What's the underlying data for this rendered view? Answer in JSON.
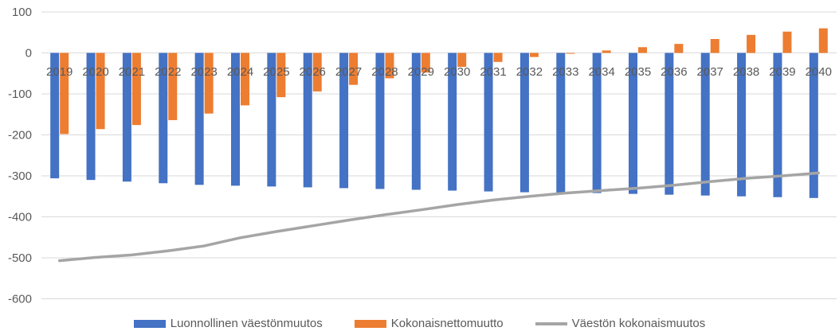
{
  "chart_data": {
    "type": "bar",
    "categories": [
      "2019",
      "2020",
      "2021",
      "2022",
      "2023",
      "2024",
      "2025",
      "2026",
      "2027",
      "2028",
      "2029",
      "2030",
      "2031",
      "2032",
      "2033",
      "2034",
      "2035",
      "2036",
      "2037",
      "2038",
      "2039",
      "2040"
    ],
    "ylim": [
      -600,
      100
    ],
    "yticks": [
      100,
      0,
      -100,
      -200,
      -300,
      -400,
      -500,
      -600
    ],
    "ytick_labels": [
      "100",
      "0",
      "-100",
      "-200",
      "-300",
      "-400",
      "-500",
      "-600"
    ],
    "grid": true,
    "legend_position": "bottom",
    "series": [
      {
        "name": "Luonnollinen väestönmuutos",
        "kind": "bar",
        "color": "#4472c4",
        "values": [
          -306,
          -310,
          -314,
          -318,
          -322,
          -324,
          -326,
          -328,
          -330,
          -332,
          -334,
          -336,
          -338,
          -340,
          -341,
          -342,
          -344,
          -346,
          -348,
          -350,
          -352,
          -354
        ]
      },
      {
        "name": "Kokonaisnettomuutto",
        "kind": "bar",
        "color": "#ed7d31",
        "values": [
          -198,
          -186,
          -176,
          -164,
          -148,
          -128,
          -108,
          -94,
          -78,
          -62,
          -48,
          -34,
          -22,
          -10,
          -2,
          6,
          14,
          22,
          34,
          44,
          52,
          60
        ]
      },
      {
        "name": "Väestön kokonaismuutos",
        "kind": "line",
        "color": "#a5a5a5",
        "values": [
          -507,
          -499,
          -493,
          -483,
          -471,
          -451,
          -436,
          -422,
          -408,
          -395,
          -383,
          -370,
          -359,
          -350,
          -342,
          -336,
          -330,
          -323,
          -314,
          -306,
          -300,
          -293
        ]
      }
    ]
  }
}
